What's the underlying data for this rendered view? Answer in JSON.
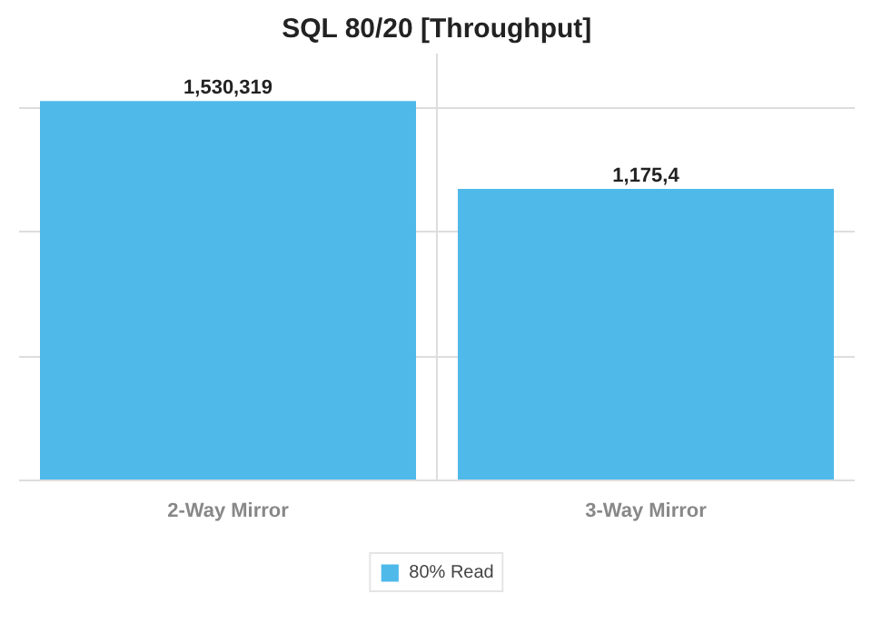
{
  "chart_data": {
    "type": "bar",
    "title": "SQL 80/20 [Throughput]",
    "categories": [
      "2-Way Mirror",
      "3-Way Mirror"
    ],
    "series": [
      {
        "name": "80% Read",
        "color": "#4fb9ea",
        "values": [
          1530319,
          1175400
        ],
        "value_labels": [
          "1,530,319",
          "1,175,4"
        ]
      }
    ],
    "grid": "y",
    "tick_labels": "x",
    "legend": "bottom"
  }
}
